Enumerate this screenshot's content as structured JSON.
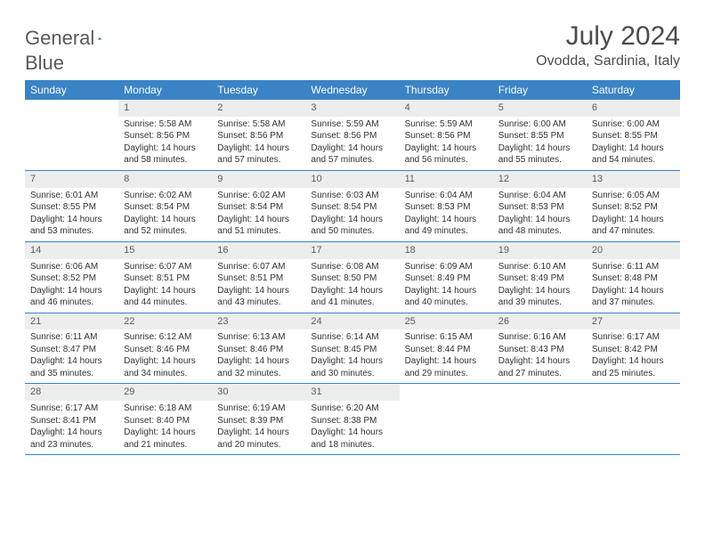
{
  "logo": {
    "text1": "General",
    "text2": "Blue"
  },
  "title": "July 2024",
  "location": "Ovodda, Sardinia, Italy",
  "colors": {
    "header_bg": "#3a83c5",
    "header_text": "#ffffff",
    "daynum_bg": "#eceded",
    "daynum_text": "#5a5c5e",
    "body_text": "#333333",
    "title_text": "#4a4c4e",
    "logo_gray": "#57595b",
    "logo_blue": "#3a7ec1",
    "week_border": "#3a83c5"
  },
  "daynames": [
    "Sunday",
    "Monday",
    "Tuesday",
    "Wednesday",
    "Thursday",
    "Friday",
    "Saturday"
  ],
  "weeks": [
    [
      {
        "n": "",
        "sr": "",
        "ss": "",
        "d1": "",
        "d2": ""
      },
      {
        "n": "1",
        "sr": "Sunrise: 5:58 AM",
        "ss": "Sunset: 8:56 PM",
        "d1": "Daylight: 14 hours",
        "d2": "and 58 minutes."
      },
      {
        "n": "2",
        "sr": "Sunrise: 5:58 AM",
        "ss": "Sunset: 8:56 PM",
        "d1": "Daylight: 14 hours",
        "d2": "and 57 minutes."
      },
      {
        "n": "3",
        "sr": "Sunrise: 5:59 AM",
        "ss": "Sunset: 8:56 PM",
        "d1": "Daylight: 14 hours",
        "d2": "and 57 minutes."
      },
      {
        "n": "4",
        "sr": "Sunrise: 5:59 AM",
        "ss": "Sunset: 8:56 PM",
        "d1": "Daylight: 14 hours",
        "d2": "and 56 minutes."
      },
      {
        "n": "5",
        "sr": "Sunrise: 6:00 AM",
        "ss": "Sunset: 8:55 PM",
        "d1": "Daylight: 14 hours",
        "d2": "and 55 minutes."
      },
      {
        "n": "6",
        "sr": "Sunrise: 6:00 AM",
        "ss": "Sunset: 8:55 PM",
        "d1": "Daylight: 14 hours",
        "d2": "and 54 minutes."
      }
    ],
    [
      {
        "n": "7",
        "sr": "Sunrise: 6:01 AM",
        "ss": "Sunset: 8:55 PM",
        "d1": "Daylight: 14 hours",
        "d2": "and 53 minutes."
      },
      {
        "n": "8",
        "sr": "Sunrise: 6:02 AM",
        "ss": "Sunset: 8:54 PM",
        "d1": "Daylight: 14 hours",
        "d2": "and 52 minutes."
      },
      {
        "n": "9",
        "sr": "Sunrise: 6:02 AM",
        "ss": "Sunset: 8:54 PM",
        "d1": "Daylight: 14 hours",
        "d2": "and 51 minutes."
      },
      {
        "n": "10",
        "sr": "Sunrise: 6:03 AM",
        "ss": "Sunset: 8:54 PM",
        "d1": "Daylight: 14 hours",
        "d2": "and 50 minutes."
      },
      {
        "n": "11",
        "sr": "Sunrise: 6:04 AM",
        "ss": "Sunset: 8:53 PM",
        "d1": "Daylight: 14 hours",
        "d2": "and 49 minutes."
      },
      {
        "n": "12",
        "sr": "Sunrise: 6:04 AM",
        "ss": "Sunset: 8:53 PM",
        "d1": "Daylight: 14 hours",
        "d2": "and 48 minutes."
      },
      {
        "n": "13",
        "sr": "Sunrise: 6:05 AM",
        "ss": "Sunset: 8:52 PM",
        "d1": "Daylight: 14 hours",
        "d2": "and 47 minutes."
      }
    ],
    [
      {
        "n": "14",
        "sr": "Sunrise: 6:06 AM",
        "ss": "Sunset: 8:52 PM",
        "d1": "Daylight: 14 hours",
        "d2": "and 46 minutes."
      },
      {
        "n": "15",
        "sr": "Sunrise: 6:07 AM",
        "ss": "Sunset: 8:51 PM",
        "d1": "Daylight: 14 hours",
        "d2": "and 44 minutes."
      },
      {
        "n": "16",
        "sr": "Sunrise: 6:07 AM",
        "ss": "Sunset: 8:51 PM",
        "d1": "Daylight: 14 hours",
        "d2": "and 43 minutes."
      },
      {
        "n": "17",
        "sr": "Sunrise: 6:08 AM",
        "ss": "Sunset: 8:50 PM",
        "d1": "Daylight: 14 hours",
        "d2": "and 41 minutes."
      },
      {
        "n": "18",
        "sr": "Sunrise: 6:09 AM",
        "ss": "Sunset: 8:49 PM",
        "d1": "Daylight: 14 hours",
        "d2": "and 40 minutes."
      },
      {
        "n": "19",
        "sr": "Sunrise: 6:10 AM",
        "ss": "Sunset: 8:49 PM",
        "d1": "Daylight: 14 hours",
        "d2": "and 39 minutes."
      },
      {
        "n": "20",
        "sr": "Sunrise: 6:11 AM",
        "ss": "Sunset: 8:48 PM",
        "d1": "Daylight: 14 hours",
        "d2": "and 37 minutes."
      }
    ],
    [
      {
        "n": "21",
        "sr": "Sunrise: 6:11 AM",
        "ss": "Sunset: 8:47 PM",
        "d1": "Daylight: 14 hours",
        "d2": "and 35 minutes."
      },
      {
        "n": "22",
        "sr": "Sunrise: 6:12 AM",
        "ss": "Sunset: 8:46 PM",
        "d1": "Daylight: 14 hours",
        "d2": "and 34 minutes."
      },
      {
        "n": "23",
        "sr": "Sunrise: 6:13 AM",
        "ss": "Sunset: 8:46 PM",
        "d1": "Daylight: 14 hours",
        "d2": "and 32 minutes."
      },
      {
        "n": "24",
        "sr": "Sunrise: 6:14 AM",
        "ss": "Sunset: 8:45 PM",
        "d1": "Daylight: 14 hours",
        "d2": "and 30 minutes."
      },
      {
        "n": "25",
        "sr": "Sunrise: 6:15 AM",
        "ss": "Sunset: 8:44 PM",
        "d1": "Daylight: 14 hours",
        "d2": "and 29 minutes."
      },
      {
        "n": "26",
        "sr": "Sunrise: 6:16 AM",
        "ss": "Sunset: 8:43 PM",
        "d1": "Daylight: 14 hours",
        "d2": "and 27 minutes."
      },
      {
        "n": "27",
        "sr": "Sunrise: 6:17 AM",
        "ss": "Sunset: 8:42 PM",
        "d1": "Daylight: 14 hours",
        "d2": "and 25 minutes."
      }
    ],
    [
      {
        "n": "28",
        "sr": "Sunrise: 6:17 AM",
        "ss": "Sunset: 8:41 PM",
        "d1": "Daylight: 14 hours",
        "d2": "and 23 minutes."
      },
      {
        "n": "29",
        "sr": "Sunrise: 6:18 AM",
        "ss": "Sunset: 8:40 PM",
        "d1": "Daylight: 14 hours",
        "d2": "and 21 minutes."
      },
      {
        "n": "30",
        "sr": "Sunrise: 6:19 AM",
        "ss": "Sunset: 8:39 PM",
        "d1": "Daylight: 14 hours",
        "d2": "and 20 minutes."
      },
      {
        "n": "31",
        "sr": "Sunrise: 6:20 AM",
        "ss": "Sunset: 8:38 PM",
        "d1": "Daylight: 14 hours",
        "d2": "and 18 minutes."
      },
      {
        "n": "",
        "sr": "",
        "ss": "",
        "d1": "",
        "d2": ""
      },
      {
        "n": "",
        "sr": "",
        "ss": "",
        "d1": "",
        "d2": ""
      },
      {
        "n": "",
        "sr": "",
        "ss": "",
        "d1": "",
        "d2": ""
      }
    ]
  ]
}
